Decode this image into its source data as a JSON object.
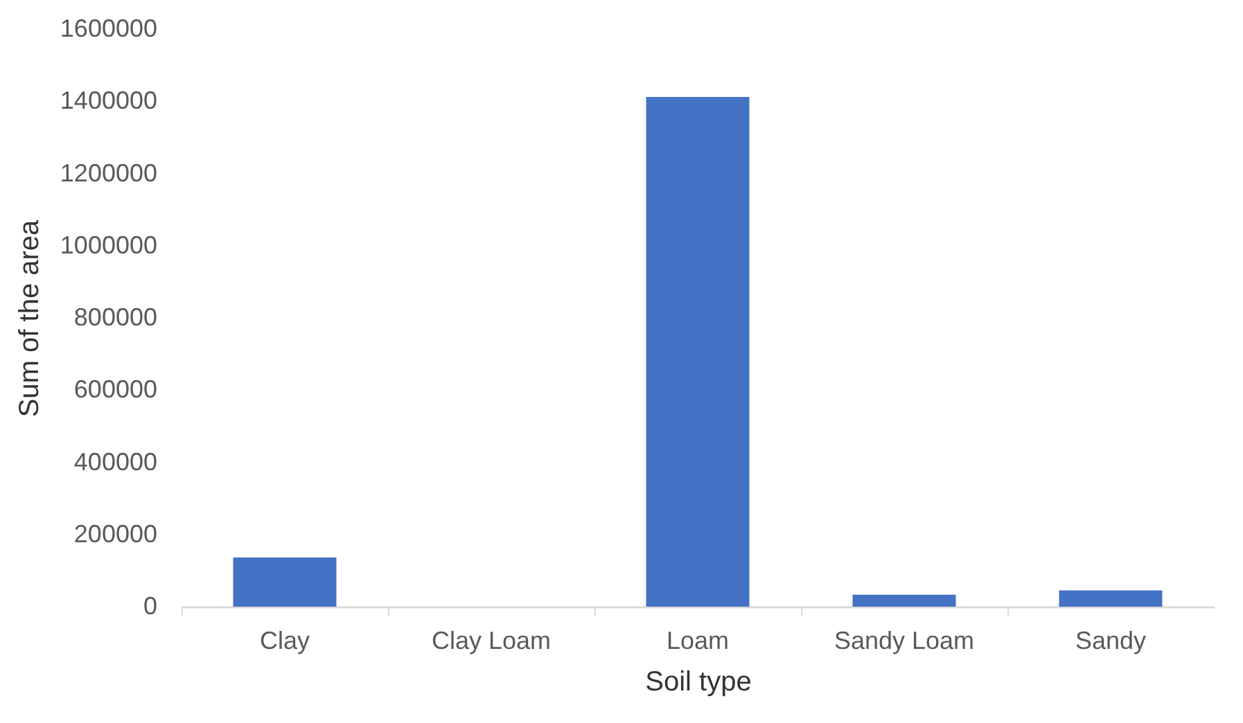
{
  "chart_data": {
    "type": "bar",
    "xlabel": "Soil type",
    "ylabel": "Sum of the area",
    "categories": [
      "Clay",
      "Clay Loam",
      "Loam",
      "Sandy Loam",
      "Sandy"
    ],
    "values": [
      136000,
      0,
      1412000,
      33000,
      45000
    ],
    "color": "#4472c4",
    "ylim": [
      0,
      1600000
    ],
    "yticks": [
      0,
      200000,
      400000,
      600000,
      800000,
      1000000,
      1200000,
      1400000,
      1600000
    ],
    "grid": false
  }
}
